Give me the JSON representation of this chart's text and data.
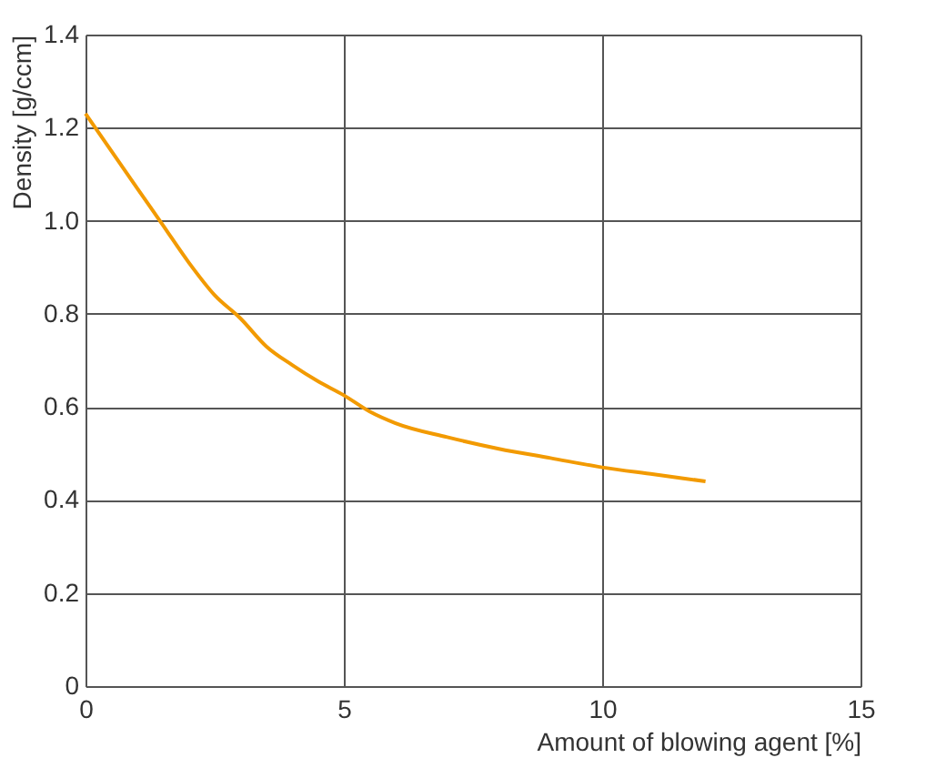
{
  "chart_data": {
    "type": "line",
    "xlabel": "Amount of blowing agent [%]",
    "ylabel": "Density [g/ccm]",
    "x": [
      0,
      0.5,
      1,
      1.5,
      2,
      2.5,
      3,
      3.5,
      4,
      4.5,
      5,
      5.5,
      6,
      7,
      8,
      9,
      10,
      11,
      12
    ],
    "values": [
      1.23,
      1.15,
      1.07,
      0.99,
      0.91,
      0.84,
      0.79,
      0.73,
      0.69,
      0.655,
      0.625,
      0.59,
      0.565,
      0.535,
      0.51,
      0.49,
      0.47,
      0.455,
      0.44
    ],
    "color": "#f29a00",
    "xlim": [
      0,
      15
    ],
    "xticks": [
      0,
      5,
      10,
      15
    ],
    "ylim": [
      0,
      1.4
    ],
    "yticks": [
      0,
      0.2,
      0.4,
      0.6,
      0.8,
      {
        "value": 1,
        "label": "1.0"
      },
      1.2,
      1.4
    ],
    "grid": true,
    "marker": "none",
    "line_style": "solid"
  }
}
